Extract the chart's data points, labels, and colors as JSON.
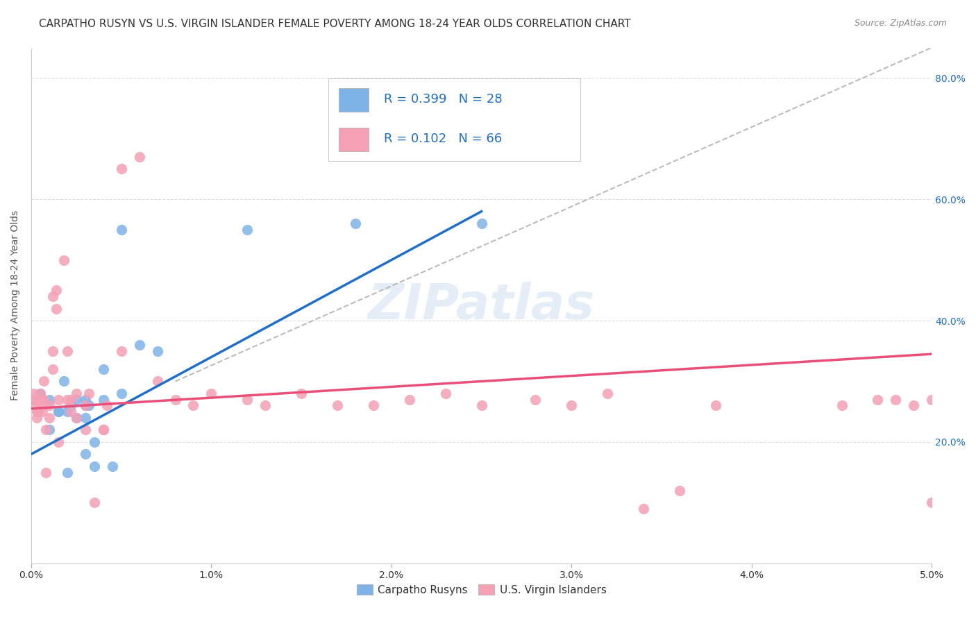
{
  "title": "CARPATHO RUSYN VS U.S. VIRGIN ISLANDER FEMALE POVERTY AMONG 18-24 YEAR OLDS CORRELATION CHART",
  "source": "Source: ZipAtlas.com",
  "xlabel": "",
  "ylabel": "Female Poverty Among 18-24 Year Olds",
  "xlim": [
    0.0,
    0.05
  ],
  "ylim": [
    0.0,
    0.85
  ],
  "xticks": [
    0.0,
    0.01,
    0.02,
    0.03,
    0.04,
    0.05
  ],
  "xtick_labels": [
    "0.0%",
    "1.0%",
    "2.0%",
    "3.0%",
    "4.0%",
    "5.0%"
  ],
  "ytick_labels_right": [
    "20.0%",
    "40.0%",
    "60.0%",
    "80.0%"
  ],
  "yticks_right": [
    0.2,
    0.4,
    0.6,
    0.8
  ],
  "blue_R": "0.399",
  "blue_N": "28",
  "pink_R": "0.102",
  "pink_N": "66",
  "blue_color": "#7EB3E8",
  "pink_color": "#F4A0B5",
  "blue_line_color": "#1E6FCC",
  "pink_line_color": "#E8507A",
  "dashed_line_color": "#BBBBBB",
  "watermark": "ZIPatlas",
  "watermark_color": "#CCDDEE",
  "background_color": "#FFFFFF",
  "legend_R_color": "#1E6FCC",
  "legend_N_color": "#1E6FCC",
  "blue_scatter_x": [
    0.0005,
    0.001,
    0.001,
    0.0015,
    0.0015,
    0.0018,
    0.002,
    0.002,
    0.0022,
    0.0025,
    0.0025,
    0.003,
    0.003,
    0.003,
    0.003,
    0.0032,
    0.0035,
    0.0035,
    0.004,
    0.004,
    0.0045,
    0.005,
    0.005,
    0.006,
    0.007,
    0.012,
    0.018,
    0.025
  ],
  "blue_scatter_y": [
    0.28,
    0.27,
    0.22,
    0.25,
    0.25,
    0.3,
    0.15,
    0.25,
    0.26,
    0.24,
    0.27,
    0.24,
    0.26,
    0.27,
    0.18,
    0.26,
    0.2,
    0.16,
    0.27,
    0.32,
    0.16,
    0.28,
    0.55,
    0.36,
    0.35,
    0.55,
    0.56,
    0.56
  ],
  "pink_scatter_x": [
    0.0001,
    0.0002,
    0.0002,
    0.0003,
    0.0003,
    0.0004,
    0.0004,
    0.0005,
    0.0005,
    0.0006,
    0.0006,
    0.0007,
    0.0007,
    0.0008,
    0.0008,
    0.001,
    0.001,
    0.0012,
    0.0012,
    0.0012,
    0.0014,
    0.0014,
    0.0015,
    0.0015,
    0.0018,
    0.002,
    0.002,
    0.0022,
    0.0022,
    0.0025,
    0.0025,
    0.003,
    0.003,
    0.0032,
    0.0035,
    0.004,
    0.004,
    0.0042,
    0.005,
    0.005,
    0.006,
    0.007,
    0.008,
    0.009,
    0.01,
    0.012,
    0.013,
    0.015,
    0.017,
    0.019,
    0.021,
    0.023,
    0.025,
    0.028,
    0.03,
    0.032,
    0.034,
    0.036,
    0.038,
    0.045,
    0.047,
    0.048,
    0.049,
    0.05,
    0.05,
    0.051
  ],
  "pink_scatter_y": [
    0.28,
    0.27,
    0.26,
    0.25,
    0.24,
    0.27,
    0.25,
    0.27,
    0.28,
    0.25,
    0.26,
    0.3,
    0.27,
    0.22,
    0.15,
    0.26,
    0.24,
    0.35,
    0.32,
    0.44,
    0.42,
    0.45,
    0.2,
    0.27,
    0.5,
    0.27,
    0.35,
    0.27,
    0.25,
    0.24,
    0.28,
    0.26,
    0.22,
    0.28,
    0.1,
    0.22,
    0.22,
    0.26,
    0.35,
    0.65,
    0.67,
    0.3,
    0.27,
    0.26,
    0.28,
    0.27,
    0.26,
    0.28,
    0.26,
    0.26,
    0.27,
    0.28,
    0.26,
    0.27,
    0.26,
    0.28,
    0.09,
    0.12,
    0.26,
    0.26,
    0.27,
    0.27,
    0.26,
    0.27,
    0.1,
    0.1
  ],
  "blue_line_x": [
    0.0,
    0.025
  ],
  "blue_line_y": [
    0.18,
    0.58
  ],
  "pink_line_x": [
    0.0,
    0.05
  ],
  "pink_line_y": [
    0.255,
    0.345
  ],
  "dashed_line_x": [
    0.008,
    0.05
  ],
  "dashed_line_y": [
    0.3,
    0.85
  ],
  "title_fontsize": 11,
  "axis_label_fontsize": 10,
  "tick_fontsize": 10,
  "legend_fontsize": 12
}
